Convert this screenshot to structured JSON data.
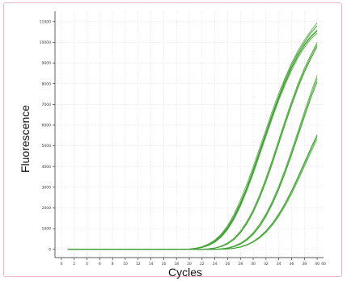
{
  "chart_data": {
    "type": "line",
    "title": "",
    "xlabel": "Cycles",
    "ylabel": "Fluorescence",
    "xlim": [
      -1,
      41
    ],
    "ylim": [
      -400,
      11500
    ],
    "x_ticks": [
      0,
      2,
      4,
      6,
      8,
      10,
      12,
      14,
      16,
      18,
      20,
      22,
      24,
      26,
      28,
      30,
      32,
      34,
      36,
      38,
      40
    ],
    "x_tick_labels": [
      "0",
      "2",
      "4",
      "6",
      "8",
      "10",
      "12",
      "14",
      "16",
      "18",
      "20",
      "22",
      "24",
      "26",
      "28",
      "30",
      "32",
      "34",
      "36",
      "38",
      "40"
    ],
    "extra_x_tick_label": "40",
    "y_ticks": [
      0,
      1000,
      2000,
      3000,
      4000,
      5000,
      6000,
      7000,
      8000,
      9000,
      10000,
      11000
    ],
    "y_tick_labels": [
      "0",
      "1000",
      "2000",
      "3000",
      "4000",
      "5000",
      "6000",
      "7000",
      "8000",
      "9000",
      "10000",
      "11000"
    ],
    "grid": true,
    "legend": "none",
    "line_color": "#5ab34a",
    "line_color_alt": "#3f9a35",
    "x": [
      1,
      2,
      3,
      4,
      5,
      6,
      7,
      8,
      9,
      10,
      11,
      12,
      13,
      14,
      15,
      16,
      17,
      18,
      19,
      20,
      21,
      22,
      23,
      24,
      25,
      26,
      27,
      28,
      29,
      30,
      31,
      32,
      33,
      34,
      35,
      36,
      37,
      38,
      39,
      40
    ],
    "series": [
      {
        "values": [
          0,
          0,
          0,
          0,
          0,
          0,
          0,
          0,
          0,
          0,
          0,
          0,
          0,
          0,
          0,
          0,
          0,
          0,
          0,
          10,
          40,
          100,
          210,
          380,
          650,
          1030,
          1550,
          2200,
          2950,
          3800,
          4700,
          5600,
          6500,
          7350,
          8100,
          8800,
          9400,
          9900,
          10300,
          10600
        ]
      },
      {
        "values": [
          0,
          0,
          0,
          0,
          0,
          0,
          0,
          0,
          0,
          0,
          0,
          0,
          0,
          0,
          0,
          0,
          0,
          0,
          0,
          12,
          45,
          110,
          230,
          410,
          690,
          1080,
          1600,
          2250,
          3000,
          3850,
          4750,
          5650,
          6550,
          7400,
          8200,
          8900,
          9500,
          10000,
          10450,
          10800
        ]
      },
      {
        "values": [
          0,
          0,
          0,
          0,
          0,
          0,
          0,
          0,
          0,
          0,
          0,
          0,
          0,
          0,
          0,
          0,
          0,
          0,
          0,
          8,
          30,
          85,
          180,
          340,
          590,
          950,
          1450,
          2080,
          2830,
          3650,
          4550,
          5450,
          6350,
          7200,
          7950,
          8650,
          9250,
          9750,
          10150,
          10450
        ]
      },
      {
        "values": [
          0,
          0,
          0,
          0,
          0,
          0,
          0,
          0,
          0,
          0,
          0,
          0,
          0,
          0,
          0,
          0,
          0,
          0,
          0,
          15,
          55,
          130,
          260,
          450,
          740,
          1150,
          1700,
          2380,
          3150,
          4000,
          4900,
          5800,
          6700,
          7550,
          8300,
          9000,
          9600,
          10100,
          10550,
          10950
        ]
      },
      {
        "values": [
          0,
          0,
          0,
          0,
          0,
          0,
          0,
          0,
          0,
          0,
          0,
          0,
          0,
          0,
          0,
          0,
          0,
          0,
          0,
          10,
          38,
          95,
          200,
          360,
          620,
          990,
          1500,
          2150,
          2900,
          3750,
          4650,
          5550,
          6450,
          7300,
          8050,
          8750,
          9350,
          9850,
          10250,
          10550
        ]
      },
      {
        "values": [
          0,
          0,
          0,
          0,
          0,
          0,
          0,
          0,
          0,
          0,
          0,
          0,
          0,
          0,
          0,
          0,
          0,
          0,
          0,
          0,
          0,
          5,
          20,
          60,
          140,
          280,
          500,
          830,
          1280,
          1850,
          2550,
          3350,
          4250,
          5200,
          6150,
          7050,
          7900,
          8650,
          9300,
          9900
        ]
      },
      {
        "values": [
          0,
          0,
          0,
          0,
          0,
          0,
          0,
          0,
          0,
          0,
          0,
          0,
          0,
          0,
          0,
          0,
          0,
          0,
          0,
          0,
          0,
          6,
          25,
          70,
          160,
          310,
          540,
          880,
          1340,
          1920,
          2630,
          3450,
          4350,
          5300,
          6250,
          7150,
          8000,
          8750,
          9400,
          10000
        ]
      },
      {
        "values": [
          0,
          0,
          0,
          0,
          0,
          0,
          0,
          0,
          0,
          0,
          0,
          0,
          0,
          0,
          0,
          0,
          0,
          0,
          0,
          0,
          0,
          4,
          18,
          55,
          130,
          260,
          470,
          790,
          1230,
          1790,
          2480,
          3270,
          4150,
          5100,
          6050,
          6950,
          7800,
          8550,
          9200,
          9800
        ]
      },
      {
        "values": [
          0,
          0,
          0,
          0,
          0,
          0,
          0,
          0,
          0,
          0,
          0,
          0,
          0,
          0,
          0,
          0,
          0,
          0,
          0,
          0,
          0,
          0,
          0,
          5,
          20,
          60,
          140,
          270,
          470,
          760,
          1150,
          1650,
          2260,
          2970,
          3780,
          4660,
          5580,
          6510,
          7420,
          8250
        ]
      },
      {
        "values": [
          0,
          0,
          0,
          0,
          0,
          0,
          0,
          0,
          0,
          0,
          0,
          0,
          0,
          0,
          0,
          0,
          0,
          0,
          0,
          0,
          0,
          0,
          0,
          6,
          24,
          70,
          160,
          300,
          510,
          810,
          1210,
          1720,
          2340,
          3060,
          3880,
          4770,
          5700,
          6640,
          7560,
          8400
        ]
      },
      {
        "values": [
          0,
          0,
          0,
          0,
          0,
          0,
          0,
          0,
          0,
          0,
          0,
          0,
          0,
          0,
          0,
          0,
          0,
          0,
          0,
          0,
          0,
          0,
          0,
          4,
          16,
          50,
          125,
          245,
          440,
          720,
          1100,
          1590,
          2190,
          2890,
          3690,
          4560,
          5470,
          6390,
          7290,
          8100
        ]
      },
      {
        "values": [
          0,
          0,
          0,
          0,
          0,
          0,
          0,
          0,
          0,
          0,
          0,
          0,
          0,
          0,
          0,
          0,
          0,
          0,
          0,
          0,
          0,
          0,
          0,
          0,
          5,
          18,
          50,
          110,
          210,
          360,
          570,
          850,
          1210,
          1650,
          2170,
          2760,
          3410,
          4100,
          4790,
          5450
        ]
      },
      {
        "values": [
          0,
          0,
          0,
          0,
          0,
          0,
          0,
          0,
          0,
          0,
          0,
          0,
          0,
          0,
          0,
          0,
          0,
          0,
          0,
          0,
          0,
          0,
          0,
          0,
          4,
          15,
          45,
          100,
          195,
          340,
          540,
          810,
          1160,
          1590,
          2100,
          2680,
          3320,
          4000,
          4680,
          5330
        ]
      },
      {
        "values": [
          0,
          0,
          0,
          0,
          0,
          0,
          0,
          0,
          0,
          0,
          0,
          0,
          0,
          0,
          0,
          0,
          0,
          0,
          0,
          0,
          0,
          0,
          0,
          0,
          6,
          20,
          55,
          120,
          225,
          380,
          600,
          890,
          1260,
          1710,
          2240,
          2840,
          3500,
          4190,
          4880,
          5540
        ]
      }
    ]
  }
}
